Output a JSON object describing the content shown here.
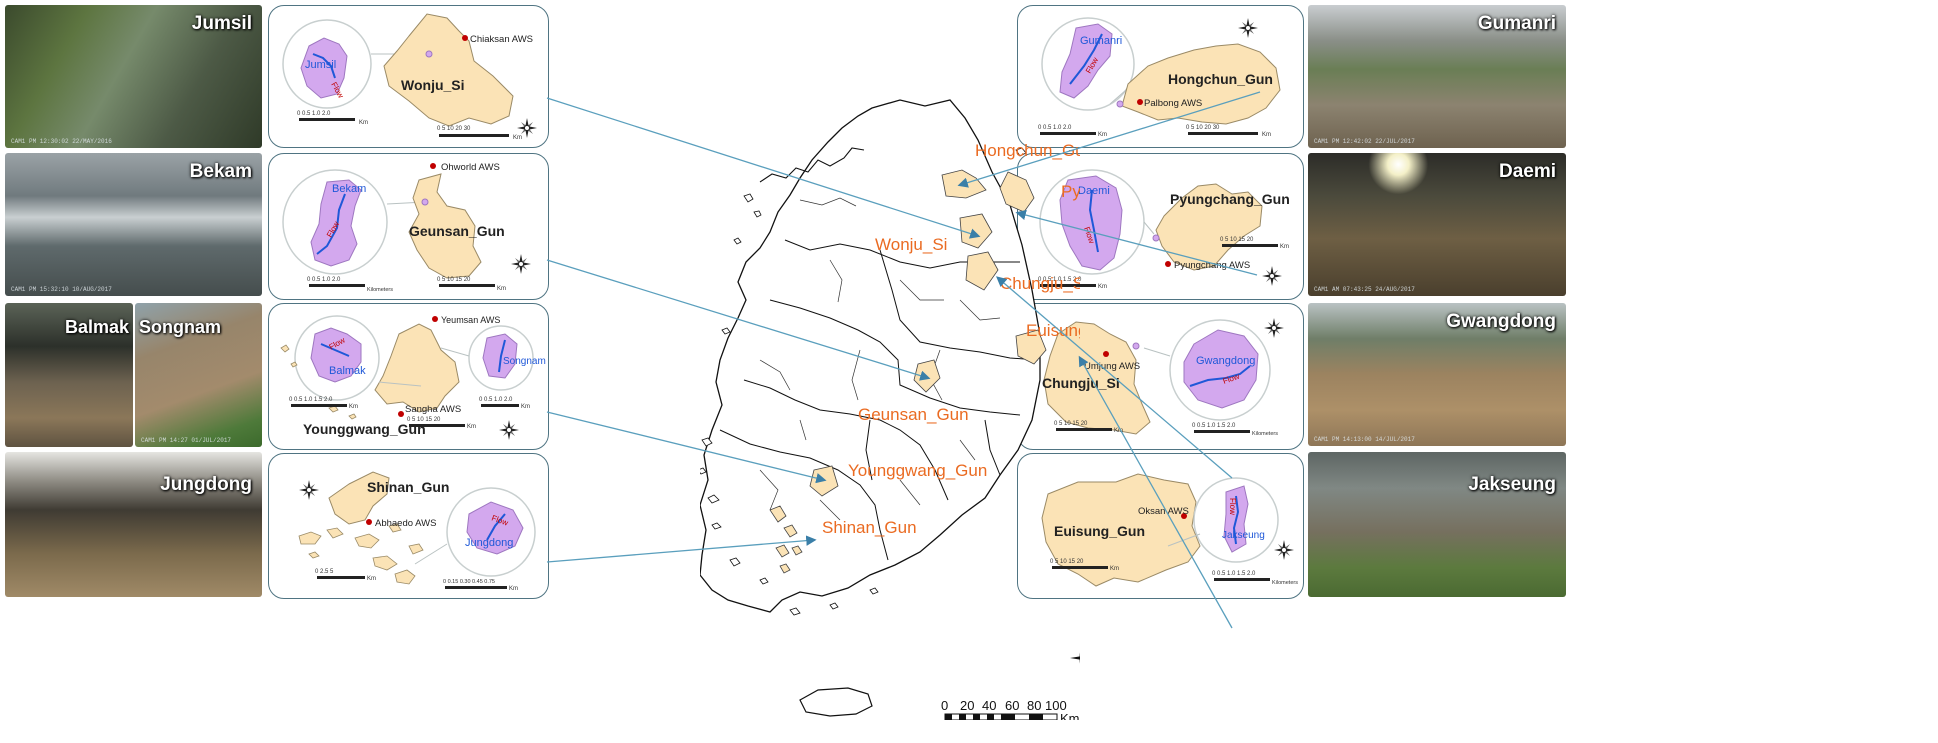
{
  "photos": {
    "jumsil": "Jumsil",
    "bekam": "Bekam",
    "balmak": "Balmak",
    "songnam": "Songnam",
    "jungdong": "Jungdong",
    "gumanri": "Gumanri",
    "daemi": "Daemi",
    "gwangdong": "Gwangdong",
    "jakseung": "Jakseung"
  },
  "photo_stamps": {
    "jumsil": "CAM1   PM 12:30:02 22/MAY/2016",
    "bekam": "CAM1   PM 15:32:10 10/AUG/2017",
    "songnam": "CAM1   PM 14:27 01/JUL/2017",
    "gumanri": "CAM1   PM 12:42:02 22/JUL/2017",
    "daemi": "CAM1   AM 07:43:25 24/AUG/2017",
    "gwangdong": "CAM1   PM 14:13:00 14/JUL/2017"
  },
  "panels": {
    "wonju": {
      "county": "Wonju_Si",
      "aws": "Chiaksan AWS",
      "basin": "Jumsil",
      "flow": "Flow",
      "small_scale": "0  0.5  1.0    2.0",
      "small_unit": "Km",
      "big_scale": "0    5    10    20   30",
      "big_unit": "Km"
    },
    "geunsan": {
      "county": "Geunsan_Gun",
      "aws": "Ohworld AWS",
      "basin": "Bekam",
      "flow": "Flow",
      "small_scale": "0   0.5  1.0    2.0",
      "small_unit": "Kilometers",
      "big_scale": "0   5   10    15   20",
      "big_unit": "Km"
    },
    "younggwang": {
      "county": "Younggwang_Gun",
      "aws1": "Yeumsan AWS",
      "aws2": "Sangha AWS",
      "basin1": "Balmak",
      "basin2": "Songnam",
      "flow": "Flow",
      "scale1": "0  0.5  1.0   1.5  2.0",
      "scale1_unit": "Km",
      "scale2": "0   5   10   15   20",
      "scale2_unit": "Km",
      "scale3": "0  0.5 1.0  2.0",
      "scale3_unit": "Km"
    },
    "shinan": {
      "county": "Shinan_Gun",
      "aws": "Abhaedo AWS",
      "basin": "Jungdong",
      "flow": "Flow",
      "big_scale": "0   2.5    5",
      "big_unit": "Km",
      "small_scale": "0 0.15 0.30 0.45 0.75",
      "small_unit": "Km"
    },
    "hongchun": {
      "county": "Hongchun_Gun",
      "aws": "Palbong AWS",
      "basin": "Gumanri",
      "flow": "Flow",
      "small_scale": "0  0.5  1.0    2.0",
      "small_unit": "Km",
      "big_scale": "0    5    10    20   30",
      "big_unit": "Km"
    },
    "pyungchang": {
      "county": "Pyungchang_Gun",
      "aws": "Pyungchang AWS",
      "basin": "Daemi",
      "flow": "Flow",
      "small_scale": "0  0.5  1.0  1.5  2.0",
      "small_unit": "Km",
      "big_scale": "0   5   10    15   20",
      "big_unit": "Km"
    },
    "chungju": {
      "county": "Chungju_Si",
      "aws": "Umjung AWS",
      "basin": "Gwangdong",
      "flow": "Flow",
      "big_scale": "0   5   10    15   20",
      "big_unit": "Km",
      "small_scale": "0  0.5  1.0  1.5  2.0",
      "small_unit": "Kilometers"
    },
    "euisung": {
      "county": "Euisung_Gun",
      "aws": "Oksan AWS",
      "basin": "Jakseung",
      "flow": "Flow",
      "big_scale": "0    5    10    15   20",
      "big_unit": "Km",
      "small_scale": "0  0.5  1.0  1.5  2.0",
      "small_unit": "Kilometers"
    }
  },
  "map_labels": {
    "hongchun": "Hongchun_Gun",
    "pyungchang": "Pyungchang_Gun",
    "wonju": "Wonju_Si",
    "chungju": "Chungju_Si",
    "euisung": "Euisung_Gun",
    "geunsan": "Geunsan_Gun",
    "younggwang": "Younggwang_Gun",
    "shinan": "Shinan_Gun"
  },
  "main_map": {
    "north": "N",
    "scale_ticks": [
      "0",
      "20",
      "40",
      "60",
      "80",
      "100"
    ],
    "scale_unit": "Km"
  },
  "colors": {
    "county_fill": "#fbe3b6",
    "basin_fill": "#d3a8ee",
    "label_orange": "#ea6b22",
    "connector": "#5a9fbd",
    "panel_border": "#4f7482",
    "river_blue": "#1f58d8",
    "aws_dot": "#c00000"
  }
}
